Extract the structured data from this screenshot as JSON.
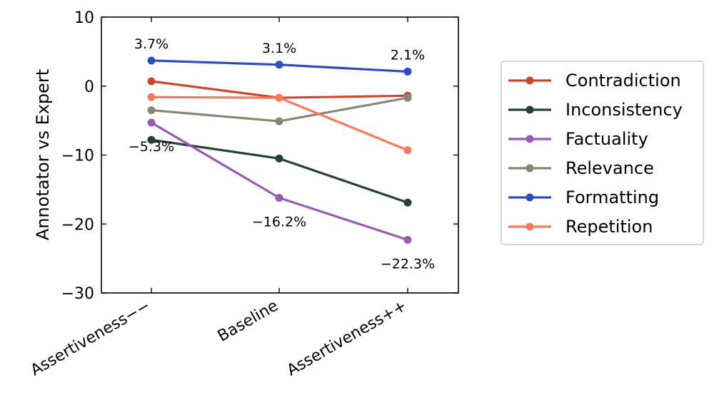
{
  "chart_data": {
    "type": "line",
    "title": "",
    "xlabel": "",
    "ylabel": "Annotator vs Expert",
    "categories": [
      "Assertiveness−−",
      "Baseline",
      "Assertiveness++"
    ],
    "ylim": [
      -30,
      10
    ],
    "yticks": [
      10,
      0,
      -10,
      -20,
      -30
    ],
    "ytick_labels": [
      "10",
      "0",
      "−10",
      "−20",
      "−30"
    ],
    "grid": false,
    "legend_position": "right",
    "series": [
      {
        "name": "Contradiction",
        "color": "#c9472f",
        "values": [
          0.7,
          -1.7,
          -1.4
        ]
      },
      {
        "name": "Inconsistency",
        "color": "#24403a",
        "values": [
          -7.8,
          -10.5,
          -16.9
        ]
      },
      {
        "name": "Factuality",
        "color": "#9b59b6",
        "values": [
          -5.3,
          -16.2,
          -22.3
        ]
      },
      {
        "name": "Relevance",
        "color": "#8c8577",
        "values": [
          -3.5,
          -5.1,
          -1.7
        ]
      },
      {
        "name": "Formatting",
        "color": "#2f4bbf",
        "values": [
          3.7,
          3.1,
          2.1
        ]
      },
      {
        "name": "Repetition",
        "color": "#f47a5a",
        "values": [
          -1.6,
          -1.7,
          -9.3
        ]
      }
    ],
    "annotations": [
      {
        "text": "3.7%",
        "series": "Formatting",
        "index": 0,
        "place": "above"
      },
      {
        "text": "3.1%",
        "series": "Formatting",
        "index": 1,
        "place": "above"
      },
      {
        "text": "2.1%",
        "series": "Formatting",
        "index": 2,
        "place": "above"
      },
      {
        "text": "−5.3%",
        "series": "Factuality",
        "index": 0,
        "place": "below"
      },
      {
        "text": "−16.2%",
        "series": "Factuality",
        "index": 1,
        "place": "below"
      },
      {
        "text": "−22.3%",
        "series": "Factuality",
        "index": 2,
        "place": "below"
      }
    ]
  }
}
